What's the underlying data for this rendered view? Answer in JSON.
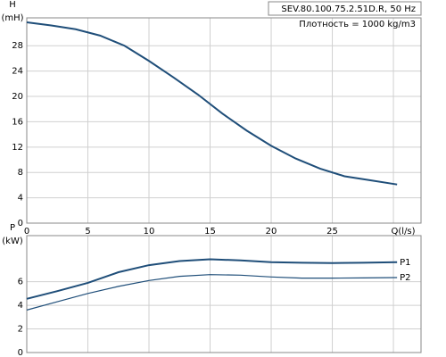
{
  "chart_data": [
    {
      "type": "line",
      "y_title": [
        "H",
        "(mH)"
      ],
      "annotations": [
        "SEV.80.100.75.2.51D.R, 50 Hz",
        "Плотность = 1000 kg/m3"
      ],
      "xlim": [
        0,
        32.26
      ],
      "xticks": [
        0,
        5,
        10,
        15,
        20,
        25,
        {
          "value": 30,
          "label": "Q(l/s)"
        }
      ],
      "ylim": [
        0,
        32.4
      ],
      "yticks": [
        0,
        4,
        8,
        12,
        16,
        20,
        24,
        28
      ],
      "grid": true,
      "x": [
        0,
        2,
        4,
        6,
        8,
        10,
        12,
        14,
        16,
        18,
        20,
        22,
        24,
        26,
        28,
        30.3
      ],
      "series": [
        {
          "color": "#1f4e79",
          "values": [
            31.7,
            31.2,
            30.6,
            29.6,
            28.0,
            25.6,
            23.0,
            20.3,
            17.3,
            14.6,
            12.2,
            10.2,
            8.6,
            7.4,
            6.8,
            6.1
          ]
        }
      ]
    },
    {
      "type": "line",
      "y_title": [
        "P",
        "(kW)"
      ],
      "xlim": [
        0,
        32.26
      ],
      "xticks": [
        0,
        5,
        10,
        15,
        20,
        25,
        30
      ],
      "ylim": [
        0,
        9.9
      ],
      "yticks": [
        0,
        2,
        4,
        6
      ],
      "grid": true,
      "x": [
        0,
        2.5,
        5,
        7.5,
        10,
        12.5,
        15,
        17.5,
        20,
        22.5,
        25,
        27.5,
        30.3
      ],
      "series": [
        {
          "name": "P1",
          "color": "#1f4e79",
          "values": [
            4.55,
            5.2,
            5.9,
            6.8,
            7.4,
            7.75,
            7.9,
            7.8,
            7.65,
            7.6,
            7.58,
            7.6,
            7.65
          ]
        },
        {
          "name": "P2",
          "color": "#1f4e79",
          "values": [
            3.6,
            4.3,
            5.0,
            5.6,
            6.1,
            6.45,
            6.6,
            6.55,
            6.4,
            6.3,
            6.3,
            6.32,
            6.35
          ]
        }
      ]
    }
  ]
}
